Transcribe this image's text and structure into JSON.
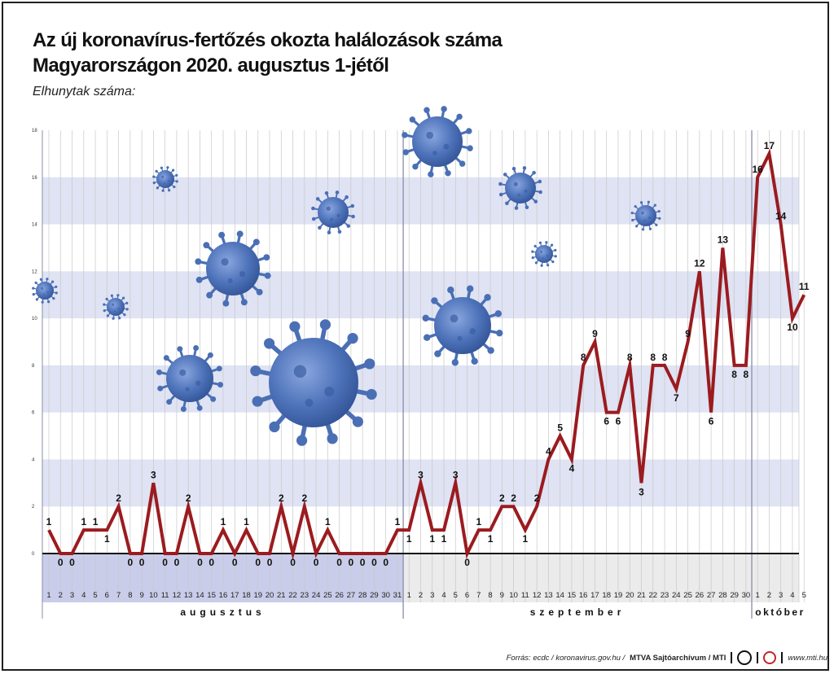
{
  "header": {
    "title_line1": "Az új koronavírus-fertőzés okozta halálozások száma",
    "title_line2": "Magyarországon 2020. augusztus 1-jétől",
    "subtitle": "Elhunytak száma:"
  },
  "footer": {
    "source": "Forrás: ecdc / koronavirus.gov.hu /",
    "archive": "MTVA Sajtóarchívum / MTI",
    "website": "www.mti.hu"
  },
  "colors": {
    "line": "#9b1b1f",
    "band": "#dfe3f3",
    "aug_axis": "#c9cdea",
    "sep_axis": "#ebebeb",
    "virus": "#4a6fb5"
  },
  "chart_data": {
    "type": "line",
    "title": "Az új koronavírus-fertőzés okozta halálozások száma Magyarországon 2020. augusztus 1-jétől",
    "ylabel": "Elhunytak száma:",
    "ylim": [
      0,
      18
    ],
    "yticks": [
      0,
      2,
      4,
      6,
      8,
      10,
      12,
      14,
      16,
      18
    ],
    "grid": true,
    "months": [
      {
        "name": "augusztus",
        "days": 31
      },
      {
        "name": "szeptember",
        "days": 30
      },
      {
        "name": "október",
        "days": 5
      }
    ],
    "x": [
      "1",
      "2",
      "3",
      "4",
      "5",
      "6",
      "7",
      "8",
      "9",
      "10",
      "11",
      "12",
      "13",
      "14",
      "15",
      "16",
      "17",
      "18",
      "19",
      "20",
      "21",
      "22",
      "23",
      "24",
      "25",
      "26",
      "27",
      "28",
      "29",
      "30",
      "31",
      "1",
      "2",
      "3",
      "4",
      "5",
      "6",
      "7",
      "8",
      "9",
      "10",
      "11",
      "12",
      "13",
      "14",
      "15",
      "16",
      "17",
      "18",
      "19",
      "20",
      "21",
      "22",
      "23",
      "24",
      "25",
      "26",
      "27",
      "28",
      "29",
      "30",
      "1",
      "2",
      "3",
      "4",
      "5"
    ],
    "values": [
      1,
      0,
      0,
      1,
      1,
      1,
      2,
      0,
      0,
      3,
      0,
      0,
      2,
      0,
      0,
      1,
      0,
      1,
      0,
      0,
      2,
      0,
      2,
      0,
      1,
      0,
      0,
      0,
      0,
      0,
      1,
      1,
      3,
      1,
      1,
      3,
      0,
      1,
      1,
      2,
      2,
      1,
      2,
      4,
      5,
      4,
      8,
      9,
      6,
      6,
      8,
      3,
      8,
      8,
      7,
      9,
      12,
      6,
      13,
      8,
      8,
      16,
      17,
      14,
      10,
      11
    ]
  }
}
